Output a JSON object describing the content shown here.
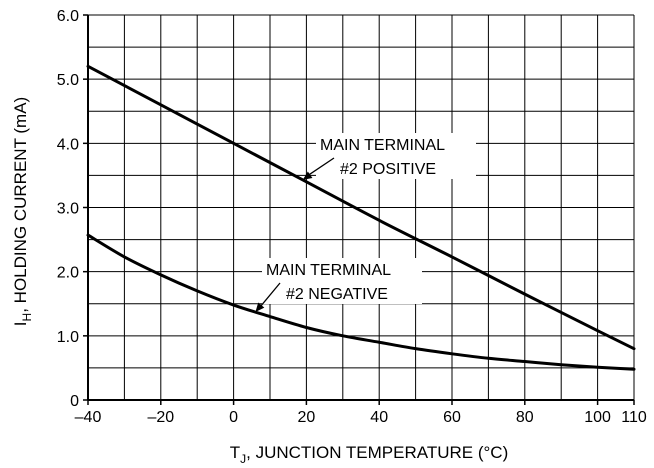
{
  "chart_data": {
    "type": "line",
    "title": "",
    "xlabel": "T",
    "xlabel_sub": "J",
    "xlabel_rest": ", JUNCTION TEMPERATURE (°C)",
    "ylabel": "I",
    "ylabel_sub": "H",
    "ylabel_rest": ", HOLDING CURRENT (mA)",
    "xlim": [
      -40,
      110
    ],
    "ylim": [
      0,
      6.0
    ],
    "grid": true,
    "x_grid": [
      -40,
      -30,
      -20,
      -10,
      0,
      10,
      20,
      30,
      40,
      50,
      60,
      70,
      80,
      90,
      100,
      110
    ],
    "y_grid": [
      0,
      0.5,
      1.0,
      1.5,
      2.0,
      2.5,
      3.0,
      3.5,
      4.0,
      4.5,
      5.0,
      5.5,
      6.0
    ],
    "x_ticks": [
      {
        "value": -40,
        "label": "–40"
      },
      {
        "value": -20,
        "label": "–20"
      },
      {
        "value": 0,
        "label": "0"
      },
      {
        "value": 20,
        "label": "20"
      },
      {
        "value": 40,
        "label": "40"
      },
      {
        "value": 60,
        "label": "60"
      },
      {
        "value": 80,
        "label": "80"
      },
      {
        "value": 100,
        "label": "100"
      },
      {
        "value": 110,
        "label": "110"
      }
    ],
    "y_ticks": [
      {
        "value": 0,
        "label": "0"
      },
      {
        "value": 1.0,
        "label": "1.0"
      },
      {
        "value": 2.0,
        "label": "2.0"
      },
      {
        "value": 3.0,
        "label": "3.0"
      },
      {
        "value": 4.0,
        "label": "4.0"
      },
      {
        "value": 5.0,
        "label": "5.0"
      },
      {
        "value": 6.0,
        "label": "6.0"
      }
    ],
    "series": [
      {
        "x": [
          -40,
          -20,
          0,
          20,
          40,
          60,
          80,
          100,
          110
        ],
        "y": [
          5.2,
          4.6,
          4.0,
          3.4,
          2.8,
          2.23,
          1.65,
          1.08,
          0.8
        ]
      },
      {
        "x": [
          -40,
          -30,
          -20,
          -10,
          0,
          10,
          20,
          30,
          40,
          50,
          60,
          70,
          80,
          90,
          100,
          110
        ],
        "y": [
          2.57,
          2.23,
          1.95,
          1.7,
          1.48,
          1.3,
          1.13,
          1.0,
          0.9,
          0.8,
          0.72,
          0.65,
          0.6,
          0.55,
          0.51,
          0.48
        ]
      }
    ],
    "annotations": [
      {
        "line1": "MAIN TERMINAL",
        "line2": "#2 POSITIVE",
        "series": 0,
        "arrow_x": 19
      },
      {
        "line1": "MAIN TERMINAL",
        "line2": "#2 NEGATIVE",
        "series": 1,
        "arrow_x": 6
      }
    ]
  }
}
